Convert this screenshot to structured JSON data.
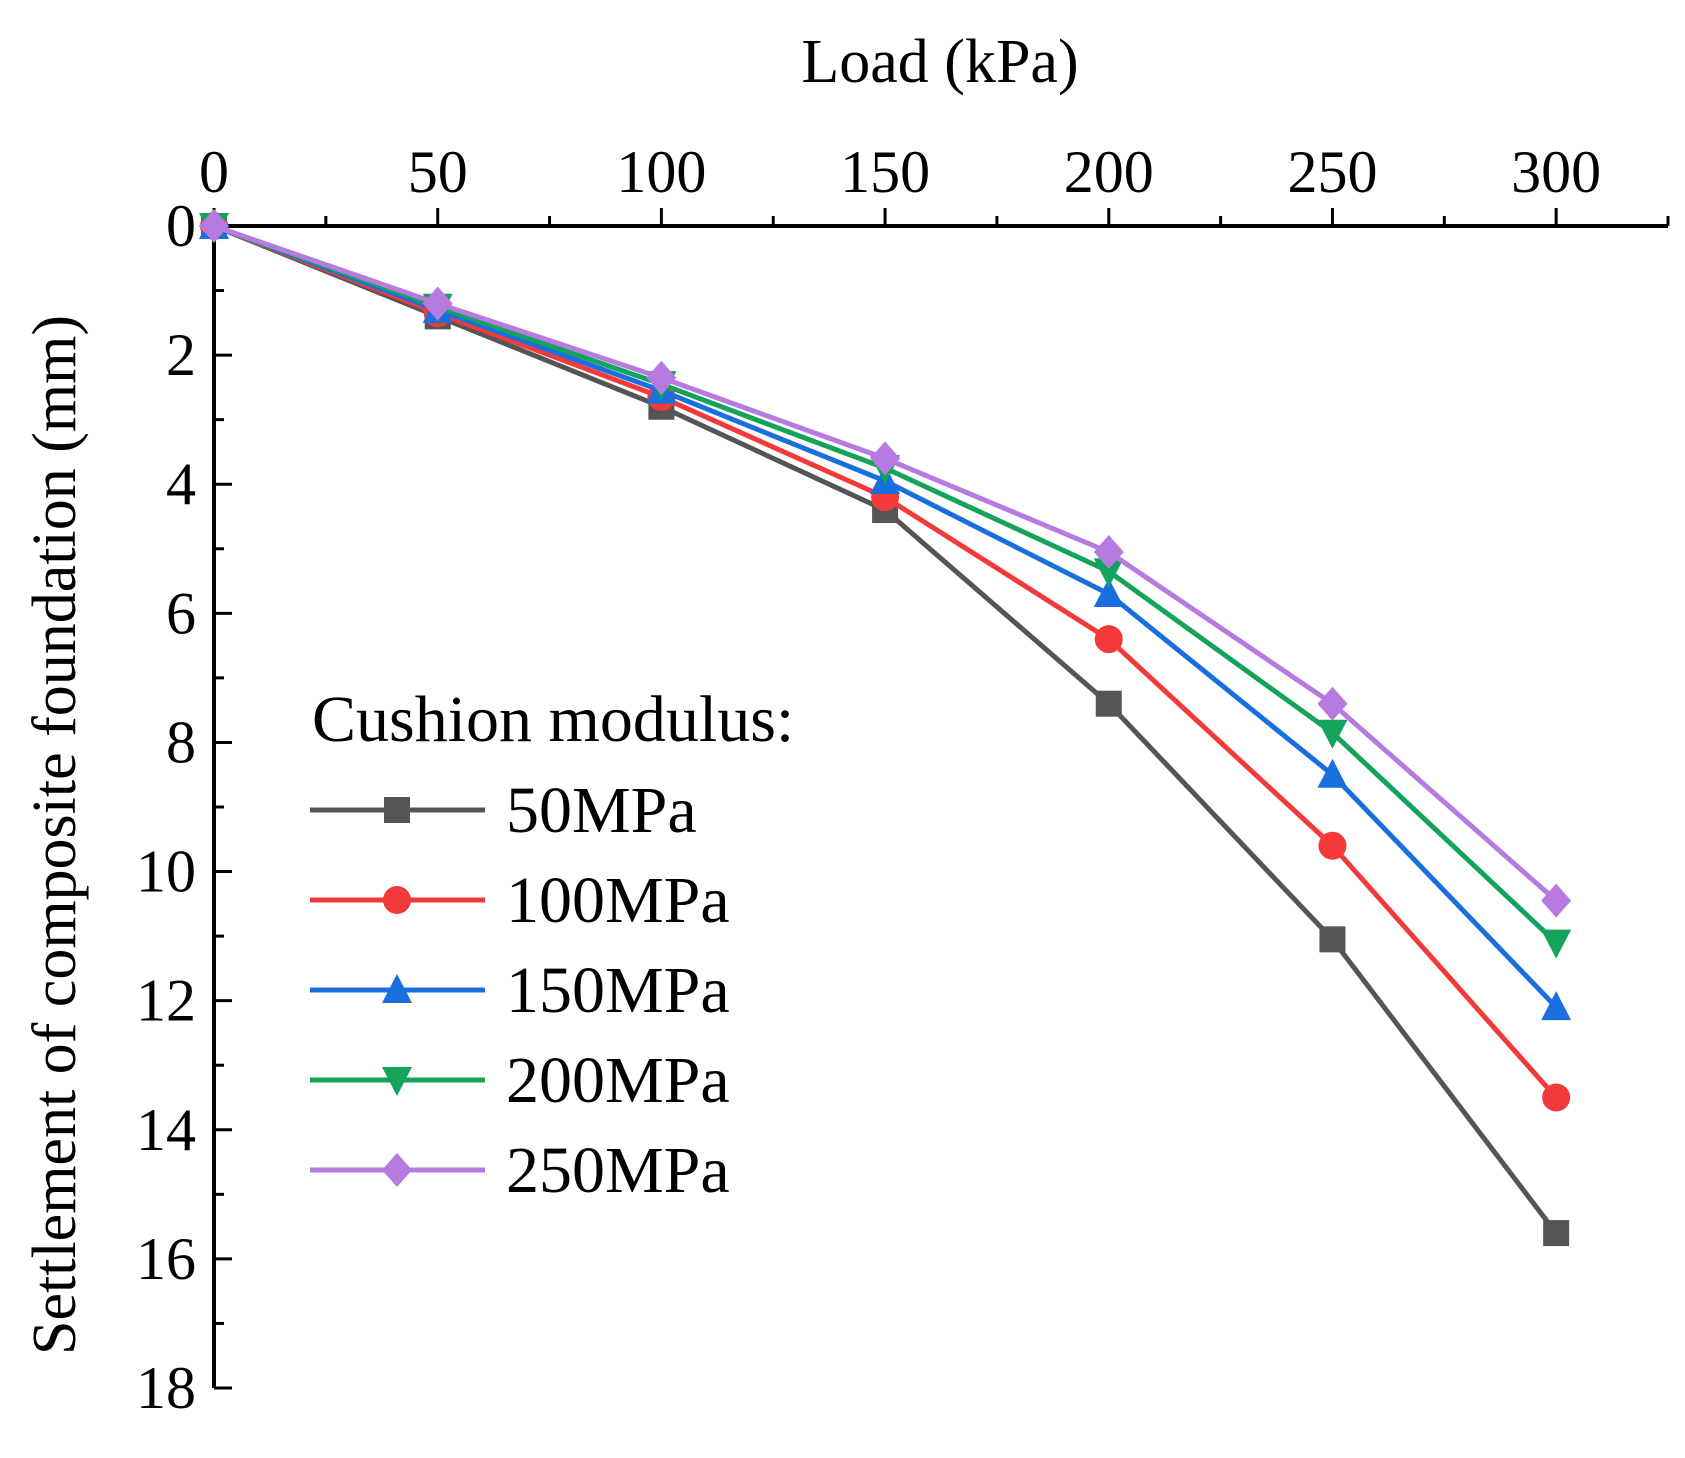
{
  "chart_data": {
    "type": "line",
    "xlabel": "Load (kPa)",
    "ylabel": "Settlement of composite foundation (mm)",
    "x_axis_position": "top",
    "y_axis_inverted": true,
    "xlim": [
      0,
      325
    ],
    "ylim": [
      0,
      18
    ],
    "x_ticks": [
      0,
      50,
      100,
      150,
      200,
      250,
      300
    ],
    "y_ticks": [
      0,
      2,
      4,
      6,
      8,
      10,
      12,
      14,
      16,
      18
    ],
    "x": [
      0,
      50,
      100,
      150,
      200,
      250,
      300
    ],
    "legend_title": "Cushion modulus:",
    "legend_position": "bottom-left",
    "grid": false,
    "series": [
      {
        "name": "50MPa",
        "color": "#555555",
        "marker": "square",
        "values": [
          0,
          1.4,
          2.8,
          4.4,
          7.4,
          11.05,
          15.6
        ]
      },
      {
        "name": "100MPa",
        "color": "#f23a3a",
        "marker": "circle",
        "values": [
          0,
          1.35,
          2.65,
          4.2,
          6.4,
          9.6,
          13.5
        ]
      },
      {
        "name": "150MPa",
        "color": "#1a6fdf",
        "marker": "triangle-up",
        "values": [
          0,
          1.3,
          2.55,
          3.95,
          5.7,
          8.5,
          12.1
        ]
      },
      {
        "name": "200MPa",
        "color": "#14a35a",
        "marker": "triangle-down",
        "values": [
          0,
          1.25,
          2.45,
          3.75,
          5.35,
          7.85,
          11.1
        ]
      },
      {
        "name": "250MPa",
        "color": "#b77ae0",
        "marker": "diamond",
        "values": [
          0,
          1.2,
          2.35,
          3.6,
          5.05,
          7.4,
          10.45
        ]
      }
    ]
  }
}
